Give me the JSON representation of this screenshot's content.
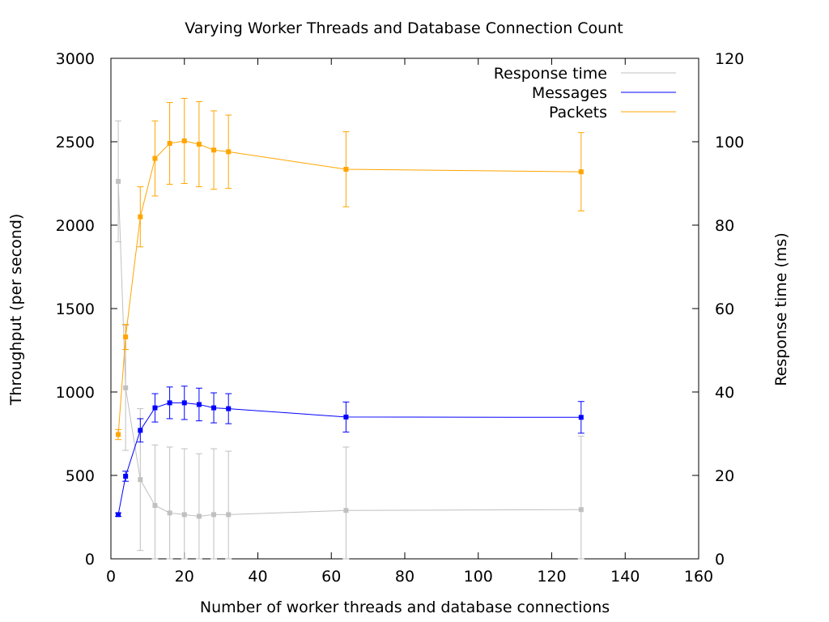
{
  "chart_data": {
    "type": "line",
    "title": "Varying Worker Threads and Database Connection Count",
    "xlabel": "Number of worker threads and database connections",
    "ylabel": "Throughput (per second)",
    "y2label": "Response time (ms)",
    "xlim": [
      0,
      160
    ],
    "ylim": [
      0,
      3000
    ],
    "y2lim": [
      0,
      120
    ],
    "xticks": [
      0,
      20,
      40,
      60,
      80,
      100,
      120,
      140,
      160
    ],
    "yticks": [
      0,
      500,
      1000,
      1500,
      2000,
      2500,
      3000
    ],
    "y2ticks": [
      0,
      20,
      40,
      60,
      80,
      100,
      120
    ],
    "grid": false,
    "legend_position": "top-right",
    "x": [
      2,
      4,
      8,
      12,
      16,
      20,
      24,
      28,
      32,
      64,
      128
    ],
    "series": [
      {
        "name": "Response time",
        "axis": "y2",
        "color": "#c0c0c0",
        "values": [
          90.5,
          41,
          19,
          12.8,
          11,
          10.6,
          10.2,
          10.6,
          10.6,
          11.6,
          11.8
        ],
        "errors": [
          14.5,
          15,
          17,
          14.5,
          15.8,
          15.8,
          15,
          15.8,
          15.2,
          15.2,
          17.6
        ]
      },
      {
        "name": "Messages",
        "axis": "y",
        "color": "#0000ff",
        "values": [
          265,
          495,
          770,
          905,
          935,
          935,
          925,
          905,
          900,
          850,
          848
        ],
        "errors": [
          10,
          30,
          70,
          85,
          95,
          100,
          98,
          90,
          90,
          90,
          95
        ]
      },
      {
        "name": "Packets",
        "axis": "y",
        "color": "#ffa500",
        "values": [
          745,
          1330,
          2050,
          2400,
          2490,
          2505,
          2485,
          2450,
          2440,
          2335,
          2320
        ],
        "errors": [
          30,
          75,
          180,
          225,
          245,
          255,
          255,
          235,
          220,
          225,
          235
        ]
      }
    ]
  }
}
